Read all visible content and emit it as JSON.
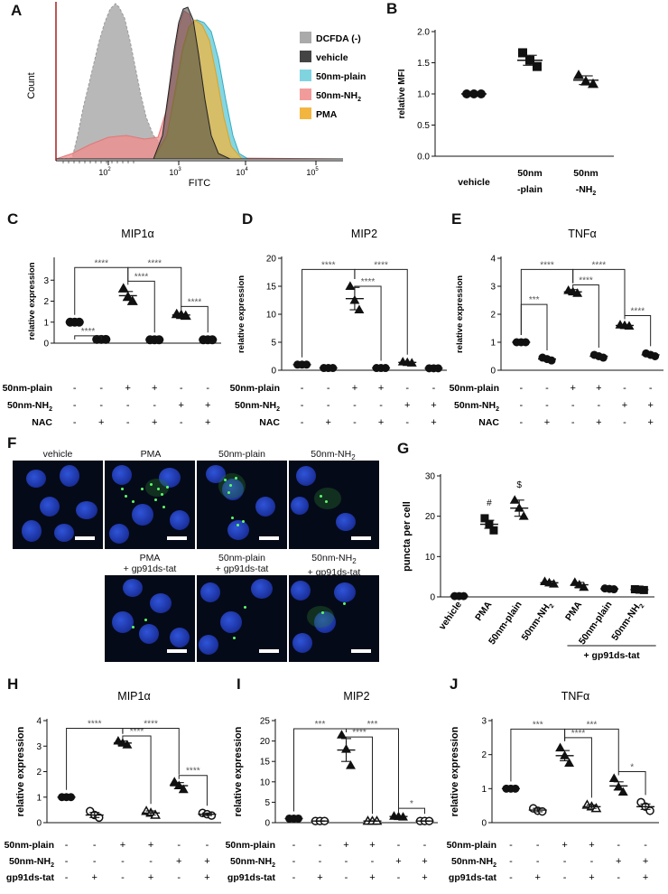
{
  "panel_letters": [
    "A",
    "B",
    "C",
    "D",
    "E",
    "F",
    "G",
    "H",
    "I",
    "J"
  ],
  "histogram": {
    "xlabel": "FITC",
    "ylabel": "Count",
    "xticks": [
      {
        "base": "10",
        "exp": "2"
      },
      {
        "base": "10",
        "exp": "3"
      },
      {
        "base": "10",
        "exp": "4"
      },
      {
        "base": "10",
        "exp": "5"
      }
    ],
    "legend": [
      {
        "label": "DCFDA (-)",
        "color": "#aaaaaa"
      },
      {
        "label": "vehicle",
        "color": "#444444"
      },
      {
        "label": "50nm-plain",
        "color": "#7fd4e0"
      },
      {
        "label": "50nm-NH",
        "sub": "2",
        "color": "#f29b9b"
      },
      {
        "label": "PMA",
        "color": "#f2b640"
      }
    ]
  },
  "tick_symbols": {
    "minus": "-",
    "plus": "+"
  },
  "chart_data": [
    {
      "panel": "B",
      "type": "scatter",
      "ylabel": "relative MFI",
      "ylim": [
        0,
        2.0
      ],
      "yticks": [
        "0.0",
        "0.5",
        "1.0",
        "1.5",
        "2.0"
      ],
      "categories": [
        {
          "l1": "vehicle",
          "l2": ""
        },
        {
          "l1": "50nm",
          "l2": "-plain"
        },
        {
          "l1": "50nm",
          "l2": "-NH",
          "sub": "2"
        }
      ],
      "means": [
        1.0,
        1.54,
        1.22
      ],
      "sems": [
        0.0,
        0.08,
        0.07
      ],
      "points": [
        [
          1.0,
          1.0,
          1.0
        ],
        [
          1.66,
          1.54,
          1.44
        ],
        [
          1.3,
          1.2,
          1.16
        ]
      ],
      "markers": [
        "circle",
        "square",
        "triangle"
      ],
      "brackets": [
        {
          "from": 0,
          "to": 1,
          "label": "**"
        },
        {
          "from": 1,
          "to": 2,
          "label": "*"
        }
      ]
    },
    {
      "panel": "C",
      "type": "scatter",
      "title": "MIP1α",
      "ylabel": "relative expression",
      "ylim": [
        0,
        4
      ],
      "yticks": [
        "0",
        "1",
        "2",
        "3"
      ],
      "means": [
        1.0,
        0.18,
        2.26,
        0.16,
        1.34,
        0.16
      ],
      "sems": [
        0,
        0.02,
        0.2,
        0.02,
        0.05,
        0.01
      ],
      "points": [
        [
          1,
          1,
          1
        ],
        [
          0.18,
          0.18,
          0.18
        ],
        [
          2.6,
          2.2,
          2.0
        ],
        [
          0.16,
          0.16,
          0.16
        ],
        [
          1.38,
          1.34,
          1.3
        ],
        [
          0.16,
          0.16,
          0.16
        ]
      ],
      "markers": [
        "circle",
        "circle",
        "triangle",
        "circle",
        "triangle",
        "circle"
      ],
      "brackets": [
        {
          "from": 0,
          "to": 1,
          "label": "****",
          "level": 0.35
        },
        {
          "from": 0,
          "to": 2,
          "label": "****",
          "level": 3.6
        },
        {
          "from": 2,
          "to": 3,
          "label": "****",
          "level": 2.95
        },
        {
          "from": 2,
          "to": 4,
          "label": "****",
          "level": 3.6
        },
        {
          "from": 4,
          "to": 5,
          "label": "****",
          "level": 1.75
        }
      ],
      "rows": [
        {
          "label": "50nm-plain",
          "signs": [
            "-",
            "-",
            "+",
            "+",
            "-",
            "-"
          ]
        },
        {
          "label": "50nm-NH",
          "sub": "2",
          "signs": [
            "-",
            "-",
            "-",
            "-",
            "+",
            "+"
          ]
        },
        {
          "label": "NAC",
          "signs": [
            "-",
            "+",
            "-",
            "+",
            "-",
            "+"
          ]
        }
      ]
    },
    {
      "panel": "D",
      "type": "scatter",
      "title": "MIP2",
      "ylabel": "relative expression",
      "ylim": [
        0,
        20
      ],
      "yticks": [
        "0",
        "5",
        "10",
        "15",
        "20"
      ],
      "means": [
        1.0,
        0.4,
        12.8,
        0.4,
        1.4,
        0.35
      ],
      "sems": [
        0,
        0.05,
        2.0,
        0.05,
        0.1,
        0.05
      ],
      "points": [
        [
          1,
          1,
          1
        ],
        [
          0.4,
          0.4,
          0.4
        ],
        [
          15.0,
          12.5,
          10.8
        ],
        [
          0.4,
          0.4,
          0.4
        ],
        [
          1.5,
          1.4,
          1.3
        ],
        [
          0.35,
          0.35,
          0.35
        ]
      ],
      "markers": [
        "circle",
        "circle",
        "triangle",
        "circle",
        "triangle",
        "circle"
      ],
      "brackets": [
        {
          "from": 0,
          "to": 2,
          "label": "****",
          "level": 18.0
        },
        {
          "from": 2,
          "to": 3,
          "label": "****",
          "level": 15.0
        },
        {
          "from": 2,
          "to": 4,
          "label": "****",
          "level": 18.0
        }
      ],
      "rows": [
        {
          "label": "50nm-plain",
          "signs": [
            "-",
            "-",
            "+",
            "+",
            "-",
            "-"
          ]
        },
        {
          "label": "50nm-NH",
          "sub": "2",
          "signs": [
            "-",
            "-",
            "-",
            "-",
            "+",
            "+"
          ]
        },
        {
          "label": "NAC",
          "signs": [
            "-",
            "+",
            "-",
            "+",
            "-",
            "+"
          ]
        }
      ]
    },
    {
      "panel": "E",
      "type": "scatter",
      "title": "TNFα",
      "ylabel": "relative expression",
      "ylim": [
        0,
        4
      ],
      "yticks": [
        "0",
        "1",
        "2",
        "3",
        "4"
      ],
      "means": [
        1.0,
        0.4,
        2.8,
        0.5,
        1.6,
        0.55
      ],
      "sems": [
        0,
        0.05,
        0.08,
        0.05,
        0.03,
        0.05
      ],
      "points": [
        [
          1,
          1,
          1
        ],
        [
          0.45,
          0.4,
          0.35
        ],
        [
          2.85,
          2.8,
          2.75
        ],
        [
          0.55,
          0.5,
          0.45
        ],
        [
          1.62,
          1.6,
          1.58
        ],
        [
          0.6,
          0.55,
          0.5
        ]
      ],
      "markers": [
        "circle",
        "circle",
        "triangle",
        "circle",
        "triangle",
        "circle"
      ],
      "brackets": [
        {
          "from": 0,
          "to": 1,
          "label": "***",
          "level": 2.35
        },
        {
          "from": 0,
          "to": 2,
          "label": "****",
          "level": 3.6
        },
        {
          "from": 2,
          "to": 3,
          "label": "****",
          "level": 3.05
        },
        {
          "from": 2,
          "to": 4,
          "label": "****",
          "level": 3.6
        },
        {
          "from": 4,
          "to": 5,
          "label": "****",
          "level": 1.95
        }
      ],
      "rows": [
        {
          "label": "50nm-plain",
          "signs": [
            "-",
            "-",
            "+",
            "+",
            "-",
            "-"
          ]
        },
        {
          "label": "50nm-NH",
          "sub": "2",
          "signs": [
            "-",
            "-",
            "-",
            "-",
            "+",
            "+"
          ]
        },
        {
          "label": "NAC",
          "signs": [
            "-",
            "+",
            "-",
            "+",
            "-",
            "+"
          ]
        }
      ]
    },
    {
      "panel": "G",
      "type": "scatter",
      "ylabel": "puncta per cell",
      "ylim": [
        0,
        30
      ],
      "yticks": [
        "0",
        "10",
        "20",
        "30"
      ],
      "categories": [
        {
          "l1": "vehicle"
        },
        {
          "l1": "PMA"
        },
        {
          "l1": "50nm-plain"
        },
        {
          "l1": "50nm-NH",
          "sub": "2"
        },
        {
          "l1": "PMA"
        },
        {
          "l1": "50nm-plain"
        },
        {
          "l1": "50nm-NH",
          "sub": "2"
        }
      ],
      "group_label": "+ gp91ds-tat",
      "means": [
        0.2,
        18,
        22,
        3.5,
        3.0,
        2.0,
        1.8
      ],
      "sems": [
        0,
        1,
        2,
        0.4,
        0.6,
        0.2,
        0.2
      ],
      "points": [
        [
          0.2,
          0.2,
          0.2
        ],
        [
          19.5,
          18,
          16.5
        ],
        [
          24,
          22,
          20
        ],
        [
          3.8,
          3.5,
          3.2
        ],
        [
          3.6,
          3.0,
          2.4
        ],
        [
          2.1,
          2.0,
          1.9
        ],
        [
          1.9,
          1.8,
          1.7
        ]
      ],
      "markers": [
        "circle",
        "square",
        "triangle",
        "triangle",
        "triangle",
        "circle",
        "square"
      ],
      "annotations": [
        {
          "index": 1,
          "label": "#"
        },
        {
          "index": 2,
          "label": "$"
        }
      ]
    },
    {
      "panel": "H",
      "type": "scatter",
      "title": "MIP1α",
      "ylabel": "relative expression",
      "ylim": [
        0,
        4
      ],
      "yticks": [
        "0",
        "1",
        "2",
        "3",
        "4"
      ],
      "means": [
        1.0,
        0.3,
        3.12,
        0.38,
        1.45,
        0.33
      ],
      "sems": [
        0,
        0.1,
        0.08,
        0.08,
        0.12,
        0.05
      ],
      "points": [
        [
          1,
          1,
          1
        ],
        [
          0.45,
          0.3,
          0.2
        ],
        [
          3.2,
          3.12,
          3.05
        ],
        [
          0.45,
          0.38,
          0.3
        ],
        [
          1.6,
          1.45,
          1.3
        ],
        [
          0.38,
          0.33,
          0.28
        ]
      ],
      "markers": [
        "circle",
        "circle-open",
        "triangle",
        "triangle-open",
        "triangle",
        "circle-open"
      ],
      "brackets": [
        {
          "from": 0,
          "to": 2,
          "label": "****",
          "level": 3.7
        },
        {
          "from": 2,
          "to": 3,
          "label": "****",
          "level": 3.4
        },
        {
          "from": 2,
          "to": 4,
          "label": "****",
          "level": 3.7
        },
        {
          "from": 4,
          "to": 5,
          "label": "****",
          "level": 1.85
        }
      ],
      "rows": [
        {
          "label": "50nm-plain",
          "signs": [
            "-",
            "-",
            "+",
            "+",
            "-",
            "-"
          ]
        },
        {
          "label": "50nm-NH",
          "sub": "2",
          "signs": [
            "-",
            "-",
            "-",
            "-",
            "+",
            "+"
          ]
        },
        {
          "label": "gp91ds-tat",
          "signs": [
            "-",
            "+",
            "-",
            "+",
            "-",
            "+"
          ]
        }
      ]
    },
    {
      "panel": "I",
      "type": "scatter",
      "title": "MIP2",
      "ylabel": "relative expression",
      "ylim": [
        0,
        25
      ],
      "yticks": [
        "0",
        "5",
        "10",
        "15",
        "20",
        "25"
      ],
      "means": [
        1.0,
        0.4,
        17.8,
        0.4,
        1.5,
        0.4
      ],
      "sems": [
        0,
        0.05,
        2.8,
        0.05,
        0.1,
        0.05
      ],
      "points": [
        [
          1,
          1,
          1
        ],
        [
          0.4,
          0.4,
          0.4
        ],
        [
          21.5,
          18,
          14
        ],
        [
          0.4,
          0.4,
          0.4
        ],
        [
          1.6,
          1.5,
          1.4
        ],
        [
          0.4,
          0.4,
          0.4
        ]
      ],
      "markers": [
        "circle",
        "circle-open",
        "triangle",
        "triangle-open",
        "triangle",
        "circle-open"
      ],
      "brackets": [
        {
          "from": 0,
          "to": 2,
          "label": "***",
          "level": 23.0
        },
        {
          "from": 2,
          "to": 3,
          "label": "****",
          "level": 21.0
        },
        {
          "from": 2,
          "to": 4,
          "label": "***",
          "level": 23.0
        },
        {
          "from": 4,
          "to": 5,
          "label": "*",
          "level": 3.5
        }
      ],
      "rows": [
        {
          "label": "50nm-plain",
          "signs": [
            "-",
            "-",
            "+",
            "+",
            "-",
            "-"
          ]
        },
        {
          "label": "50nm-NH",
          "sub": "2",
          "signs": [
            "-",
            "-",
            "-",
            "-",
            "+",
            "+"
          ]
        },
        {
          "label": "gp91ds-tat",
          "signs": [
            "-",
            "+",
            "-",
            "+",
            "-",
            "+"
          ]
        }
      ]
    },
    {
      "panel": "J",
      "type": "scatter",
      "title": "TNFα",
      "ylabel": "relative expression",
      "ylim": [
        0,
        3
      ],
      "yticks": [
        "0",
        "1",
        "2",
        "3"
      ],
      "means": [
        1.0,
        0.37,
        1.97,
        0.47,
        1.08,
        0.47
      ],
      "sems": [
        0,
        0.05,
        0.15,
        0.05,
        0.12,
        0.08
      ],
      "points": [
        [
          1,
          1,
          1
        ],
        [
          0.42,
          0.35,
          0.33
        ],
        [
          2.2,
          1.97,
          1.75
        ],
        [
          0.52,
          0.47,
          0.42
        ],
        [
          1.3,
          1.05,
          0.9
        ],
        [
          0.6,
          0.47,
          0.35
        ]
      ],
      "markers": [
        "circle",
        "circle-open",
        "triangle",
        "triangle-open",
        "triangle",
        "circle-open"
      ],
      "brackets": [
        {
          "from": 0,
          "to": 2,
          "label": "***",
          "level": 2.75
        },
        {
          "from": 2,
          "to": 3,
          "label": "****",
          "level": 2.5
        },
        {
          "from": 2,
          "to": 4,
          "label": "***",
          "level": 2.75
        },
        {
          "from": 4,
          "to": 5,
          "label": "*",
          "level": 1.5
        }
      ],
      "rows": [
        {
          "label": "50nm-plain",
          "signs": [
            "-",
            "-",
            "+",
            "+",
            "-",
            "-"
          ]
        },
        {
          "label": "50nm-NH",
          "sub": "2",
          "signs": [
            "-",
            "-",
            "-",
            "-",
            "+",
            "+"
          ]
        },
        {
          "label": "gp91ds-tat",
          "signs": [
            "-",
            "+",
            "-",
            "+",
            "-",
            "+"
          ]
        }
      ]
    }
  ],
  "micrographs": {
    "top": [
      {
        "label": "vehicle"
      },
      {
        "label": "PMA"
      },
      {
        "label": "50nm-plain"
      },
      {
        "label": "50nm-NH",
        "sub": "2"
      }
    ],
    "bottom": [
      {
        "l1": "PMA",
        "l2": "+ gp91ds-tat"
      },
      {
        "l1": "50nm-plain",
        "l2": "+ gp91ds-tat"
      },
      {
        "l1": "50nm-NH",
        "sub": "2",
        "l2": "+ gp91ds-tat"
      }
    ]
  }
}
